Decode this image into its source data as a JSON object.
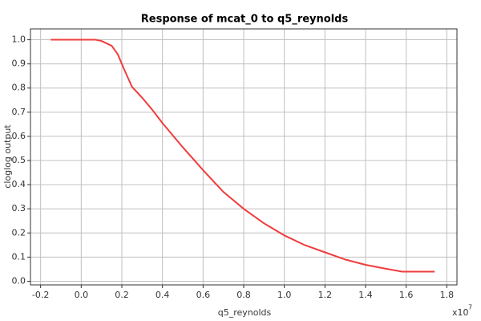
{
  "chart_data": {
    "type": "line",
    "title": "Response of mcat_0 to q5_reynolds",
    "x_label": "q5_reynolds",
    "y_label": "cloglog output",
    "x_multiplier": {
      "base": "x10",
      "exponent": "7"
    },
    "series": [
      {
        "name": "cloglog output",
        "color": "#f03c3c",
        "x": [
          -0.15,
          0.07,
          0.1,
          0.15,
          0.18,
          0.21,
          0.25,
          0.3,
          0.35,
          0.4,
          0.5,
          0.6,
          0.7,
          0.8,
          0.9,
          1.0,
          1.1,
          1.2,
          1.3,
          1.4,
          1.5,
          1.58,
          1.74
        ],
        "values": [
          1.0,
          1.0,
          0.995,
          0.975,
          0.94,
          0.88,
          0.805,
          0.76,
          0.71,
          0.655,
          0.555,
          0.46,
          0.37,
          0.3,
          0.24,
          0.19,
          0.15,
          0.12,
          0.09,
          0.068,
          0.052,
          0.04,
          0.04
        ]
      }
    ],
    "xlim": [
      -0.25,
      1.85
    ],
    "ylim": [
      -0.015,
      1.045
    ],
    "xticks": [
      -0.2,
      {
        "value": 0,
        "label": "0.0"
      },
      0.2,
      0.4,
      0.6,
      0.8,
      {
        "value": 1,
        "label": "1.0"
      },
      1.2,
      1.4,
      1.6,
      1.8
    ],
    "yticks": [
      {
        "value": 0,
        "label": "0.0"
      },
      0.1,
      0.2,
      0.3,
      0.4,
      0.5,
      0.6,
      0.7,
      0.8,
      0.9,
      {
        "value": 1,
        "label": "1.0"
      }
    ],
    "grid": true
  }
}
